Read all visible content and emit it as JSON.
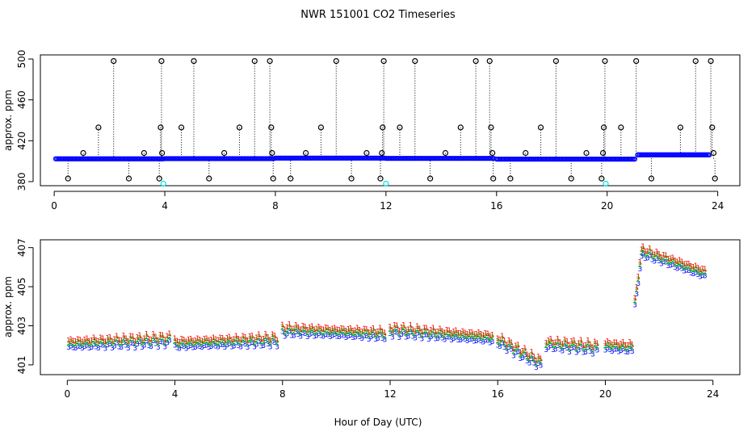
{
  "chart_data": {
    "title": "NWR  151001  CO2 Timeseries",
    "xlabel": "Hour of Day (UTC)",
    "colors": {
      "flag0": "#000000",
      "series_blue": "#0000ff",
      "series_red": "#ff0000",
      "series_green": "#00cc00",
      "outlier_cyan": "#00e5e5"
    },
    "panels": [
      {
        "type": "scatter",
        "ylabel": "approx. ppm",
        "xlim": [
          -0.5,
          24.8
        ],
        "ylim": [
          376,
          504
        ],
        "xticks": [
          0,
          4,
          8,
          12,
          16,
          20,
          24
        ],
        "xtick_labels": [
          "0",
          "4",
          "8",
          "12",
          "16",
          "20",
          "24"
        ],
        "yticks": [
          380,
          420,
          460,
          500
        ],
        "ytick_labels": [
          "380",
          "420",
          "460",
          "500"
        ],
        "baseline_segments": [
          {
            "x_start": 0.05,
            "x_end": 3.95,
            "y": 402.3
          },
          {
            "x_start": 4.0,
            "x_end": 7.95,
            "y": 402.5
          },
          {
            "x_start": 8.0,
            "x_end": 11.95,
            "y": 403.0
          },
          {
            "x_start": 12.0,
            "x_end": 15.9,
            "y": 402.7
          },
          {
            "x_start": 16.0,
            "x_end": 19.95,
            "y": 402.0
          },
          {
            "x_start": 20.0,
            "x_end": 21.0,
            "y": 402.0
          },
          {
            "x_start": 21.1,
            "x_end": 23.7,
            "y": 406.2
          }
        ],
        "flagged_points": [
          {
            "x": 0.5,
            "y": 383
          },
          {
            "x": 1.05,
            "y": 408
          },
          {
            "x": 1.6,
            "y": 433
          },
          {
            "x": 2.15,
            "y": 498
          },
          {
            "x": 2.7,
            "y": 383
          },
          {
            "x": 3.25,
            "y": 408
          },
          {
            "x": 3.8,
            "y": 383
          },
          {
            "x": 3.85,
            "y": 433
          },
          {
            "x": 3.88,
            "y": 498
          },
          {
            "x": 3.9,
            "y": 408
          },
          {
            "x": 4.6,
            "y": 433
          },
          {
            "x": 5.05,
            "y": 498
          },
          {
            "x": 5.6,
            "y": 383
          },
          {
            "x": 6.15,
            "y": 408
          },
          {
            "x": 6.7,
            "y": 433
          },
          {
            "x": 7.25,
            "y": 498
          },
          {
            "x": 7.8,
            "y": 498
          },
          {
            "x": 7.85,
            "y": 433
          },
          {
            "x": 7.88,
            "y": 408
          },
          {
            "x": 7.92,
            "y": 383
          },
          {
            "x": 8.55,
            "y": 383
          },
          {
            "x": 9.1,
            "y": 408
          },
          {
            "x": 9.65,
            "y": 433
          },
          {
            "x": 10.2,
            "y": 498
          },
          {
            "x": 10.75,
            "y": 383
          },
          {
            "x": 11.3,
            "y": 408
          },
          {
            "x": 11.8,
            "y": 383
          },
          {
            "x": 11.85,
            "y": 408
          },
          {
            "x": 11.88,
            "y": 433
          },
          {
            "x": 11.92,
            "y": 498
          },
          {
            "x": 12.5,
            "y": 433
          },
          {
            "x": 13.05,
            "y": 498
          },
          {
            "x": 13.6,
            "y": 383
          },
          {
            "x": 14.15,
            "y": 408
          },
          {
            "x": 14.7,
            "y": 433
          },
          {
            "x": 15.25,
            "y": 498
          },
          {
            "x": 15.75,
            "y": 498
          },
          {
            "x": 15.8,
            "y": 433
          },
          {
            "x": 15.85,
            "y": 408
          },
          {
            "x": 15.88,
            "y": 383
          },
          {
            "x": 16.5,
            "y": 383
          },
          {
            "x": 17.05,
            "y": 408
          },
          {
            "x": 17.6,
            "y": 433
          },
          {
            "x": 18.15,
            "y": 498
          },
          {
            "x": 18.7,
            "y": 383
          },
          {
            "x": 19.25,
            "y": 408
          },
          {
            "x": 19.8,
            "y": 383
          },
          {
            "x": 19.85,
            "y": 408
          },
          {
            "x": 19.88,
            "y": 433
          },
          {
            "x": 19.92,
            "y": 498
          },
          {
            "x": 20.5,
            "y": 433
          },
          {
            "x": 21.05,
            "y": 498
          },
          {
            "x": 21.6,
            "y": 383
          },
          {
            "x": 22.65,
            "y": 433
          },
          {
            "x": 23.2,
            "y": 498
          },
          {
            "x": 23.75,
            "y": 498
          },
          {
            "x": 23.8,
            "y": 433
          },
          {
            "x": 23.85,
            "y": 408
          },
          {
            "x": 23.9,
            "y": 383
          }
        ],
        "cyan_points": [
          {
            "x": 3.95,
            "y": 378
          },
          {
            "x": 12.0,
            "y": 378
          },
          {
            "x": 19.95,
            "y": 378
          }
        ]
      },
      {
        "type": "scatter",
        "ylabel": "approx. ppm",
        "xlim": [
          -1.0,
          25.0
        ],
        "ylim": [
          400.5,
          407.4
        ],
        "xticks": [
          0,
          4,
          8,
          12,
          16,
          20,
          24
        ],
        "xtick_labels": [
          "0",
          "4",
          "8",
          "12",
          "16",
          "20",
          "24"
        ],
        "yticks": [
          401,
          403,
          405,
          407
        ],
        "ytick_labels": [
          "401",
          "403",
          "405",
          "407"
        ],
        "series": [
          {
            "name": "1",
            "marker": "1",
            "color": "#ff0000",
            "offset": 0.35
          },
          {
            "name": "2",
            "marker": "2",
            "color": "#00cc00",
            "offset": 0.2
          },
          {
            "name": "3",
            "marker": "3",
            "color": "#0000ff",
            "offset": 0.0
          }
        ],
        "segments": [
          {
            "x_start": 0.05,
            "x_end": 3.8,
            "y_start": 401.9,
            "y_end": 402.1
          },
          {
            "x_start": 4.0,
            "x_end": 7.8,
            "y_start": 401.9,
            "y_end": 402.1
          },
          {
            "x_start": 8.0,
            "x_end": 11.8,
            "y_start": 402.6,
            "y_end": 402.4
          },
          {
            "x_start": 12.0,
            "x_end": 15.8,
            "y_start": 402.6,
            "y_end": 402.2
          },
          {
            "x_start": 16.0,
            "x_end": 17.6,
            "y_start": 402.1,
            "y_end": 400.9
          },
          {
            "x_start": 17.8,
            "x_end": 19.7,
            "y_start": 401.9,
            "y_end": 401.7
          },
          {
            "x_start": 20.0,
            "x_end": 21.0,
            "y_start": 401.8,
            "y_end": 401.7
          },
          {
            "x_start": 21.1,
            "x_end": 21.35,
            "y_start": 404.0,
            "y_end": 406.5
          },
          {
            "x_start": 21.4,
            "x_end": 23.7,
            "y_start": 406.6,
            "y_end": 405.5
          }
        ]
      }
    ]
  }
}
